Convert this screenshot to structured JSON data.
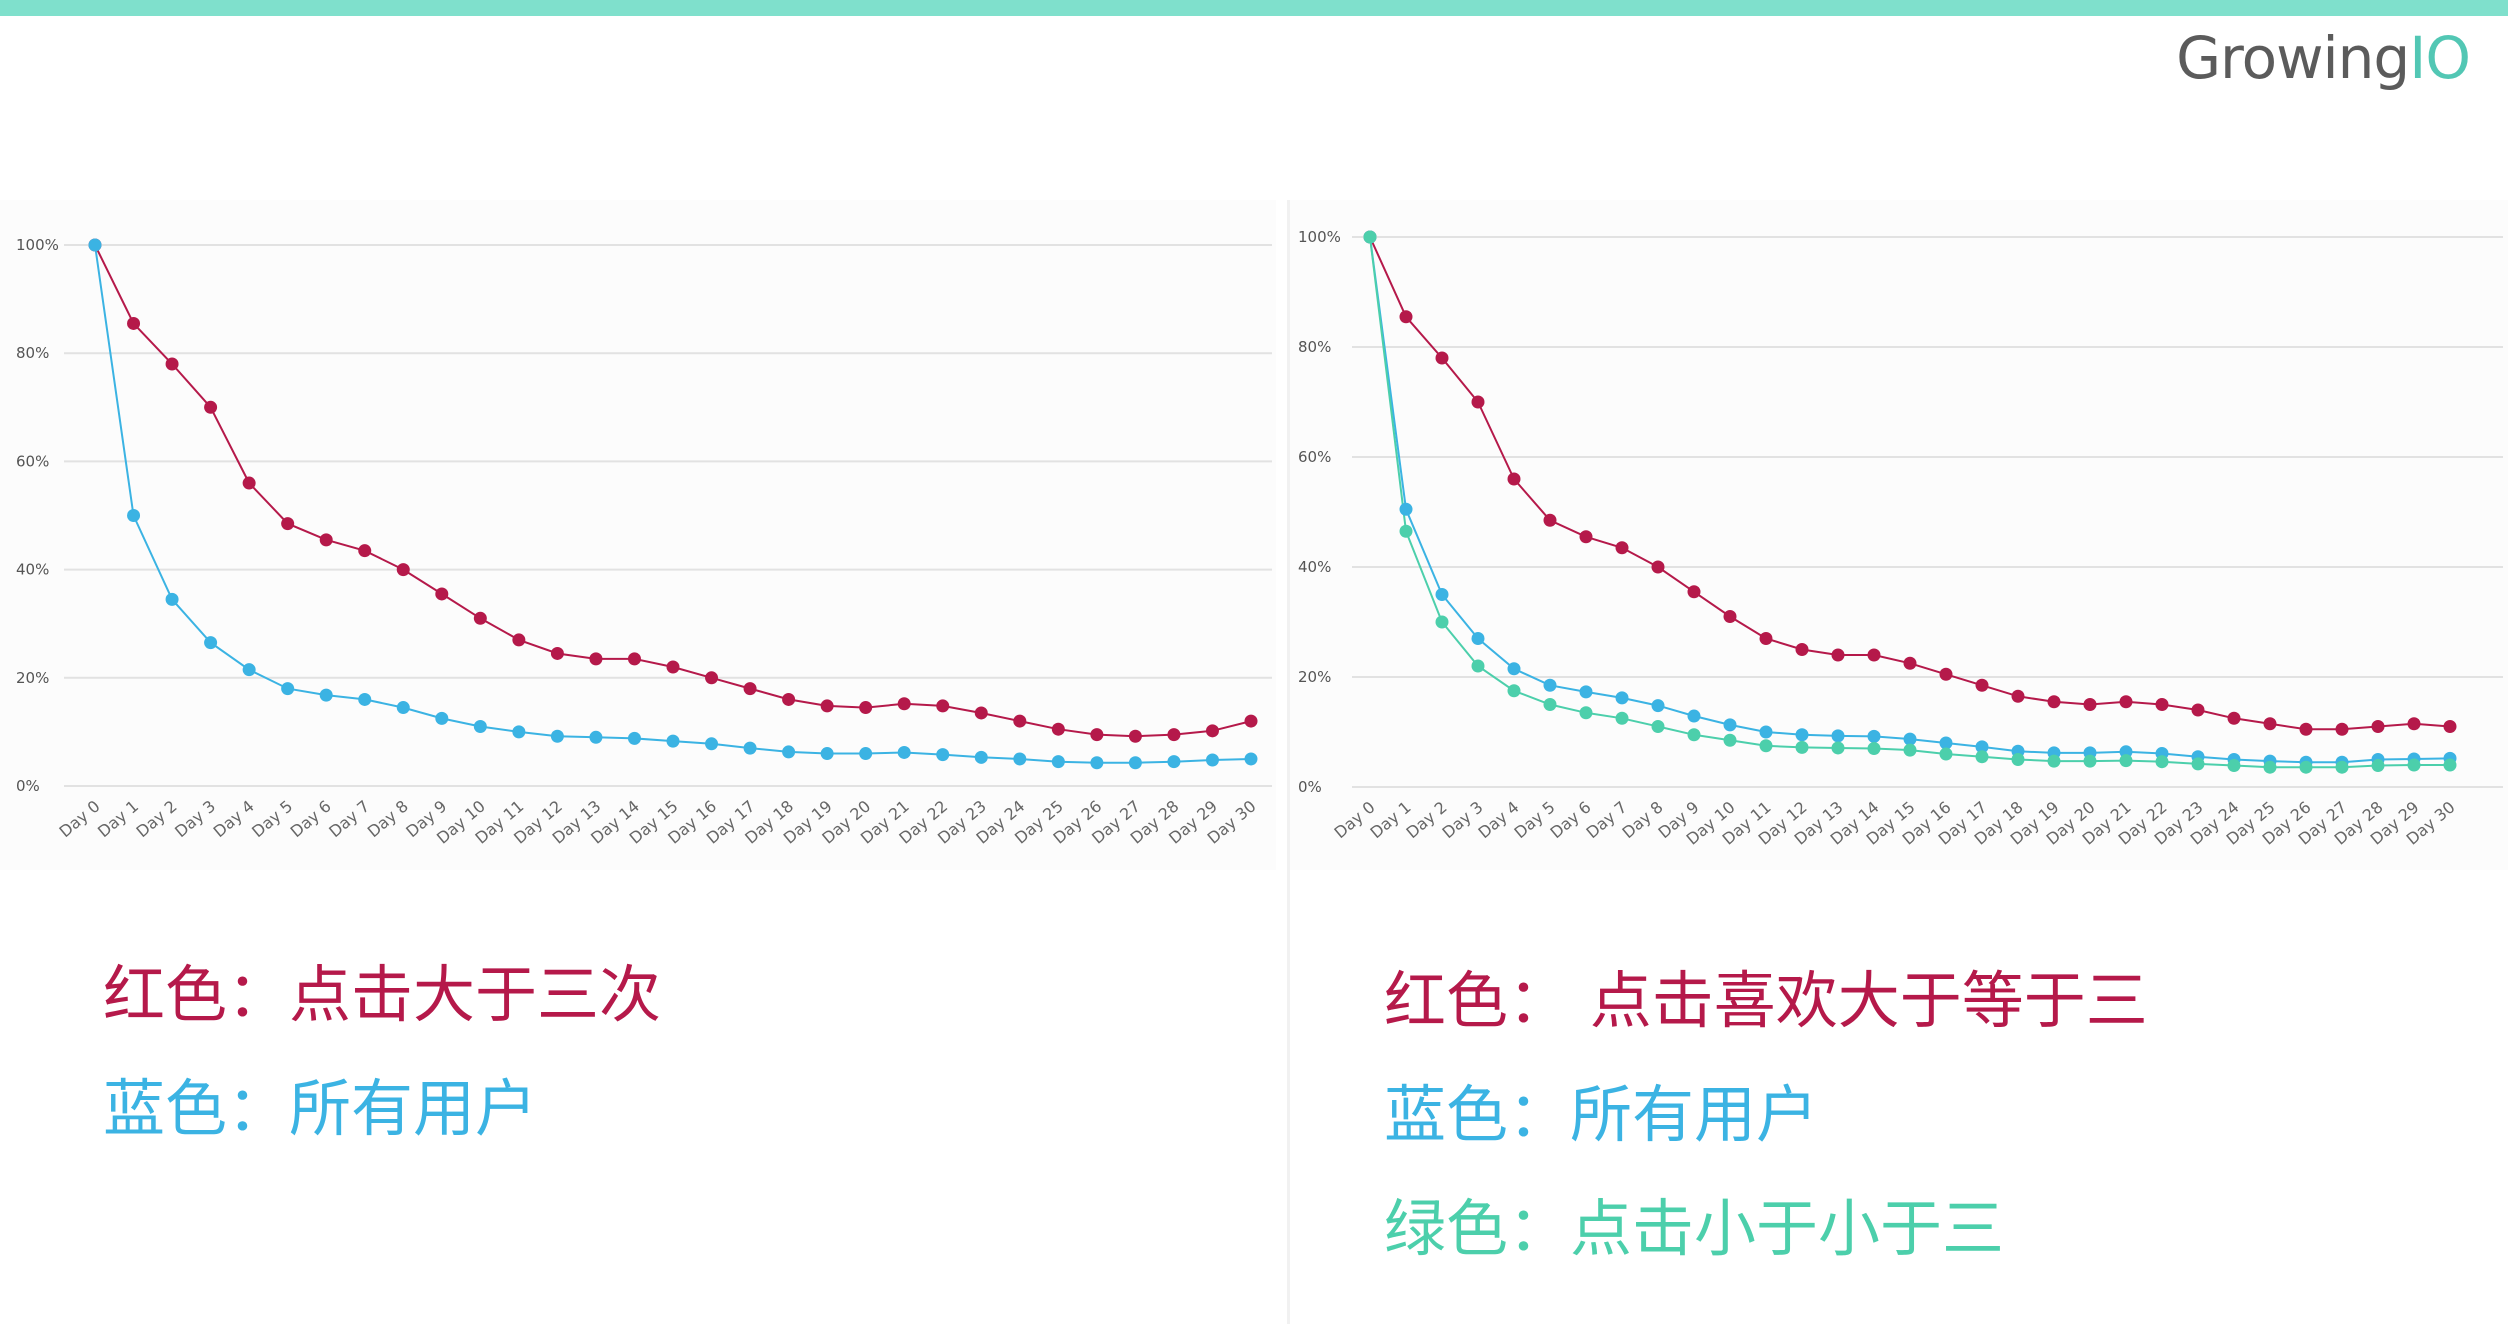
{
  "brand": {
    "name_main": "Growing",
    "name_io": "IO",
    "accent_color": "#7fe0cc"
  },
  "colors": {
    "red": "#b5194a",
    "blue": "#3bb3e3",
    "green": "#4ccfab"
  },
  "chart_data": [
    {
      "type": "line",
      "categories": [
        "Day 0",
        "Day 1",
        "Day 2",
        "Day 3",
        "Day 4",
        "Day 5",
        "Day 6",
        "Day 7",
        "Day 8",
        "Day 9",
        "Day 10",
        "Day 11",
        "Day 12",
        "Day 13",
        "Day 14",
        "Day 15",
        "Day 16",
        "Day 17",
        "Day 18",
        "Day 19",
        "Day 20",
        "Day 21",
        "Day 22",
        "Day 23",
        "Day 24",
        "Day 25",
        "Day 26",
        "Day 27",
        "Day 28",
        "Day 29",
        "Day 30"
      ],
      "yticks": [
        "0%",
        "20%",
        "40%",
        "60%",
        "80%",
        "100%"
      ],
      "ylim": [
        0,
        100
      ],
      "grid": true,
      "series": [
        {
          "color_key": "red",
          "values": [
            100,
            85.5,
            78,
            70,
            56,
            48.5,
            45.5,
            43.5,
            40,
            35.5,
            31,
            27,
            24.5,
            23.5,
            23.5,
            22,
            20,
            18,
            16,
            14.8,
            14.5,
            15.2,
            14.8,
            13.5,
            12,
            10.5,
            9.5,
            9.2,
            9.5,
            10.2,
            12
          ]
        },
        {
          "color_key": "blue",
          "values": [
            100,
            50,
            34.5,
            26.5,
            21.5,
            18,
            16.8,
            16,
            14.5,
            12.5,
            11,
            10,
            9.2,
            9,
            8.8,
            8.3,
            7.8,
            7,
            6.3,
            6,
            6,
            6.2,
            5.8,
            5.3,
            5,
            4.5,
            4.3,
            4.3,
            4.5,
            4.8,
            5
          ]
        }
      ]
    },
    {
      "type": "line",
      "categories": [
        "Day 0",
        "Day 1",
        "Day 2",
        "Day 3",
        "Day 4",
        "Day 5",
        "Day 6",
        "Day 7",
        "Day 8",
        "Day 9",
        "Day 10",
        "Day 11",
        "Day 12",
        "Day 13",
        "Day 14",
        "Day 15",
        "Day 16",
        "Day 17",
        "Day 18",
        "Day 19",
        "Day 20",
        "Day 21",
        "Day 22",
        "Day 23",
        "Day 24",
        "Day 25",
        "Day 26",
        "Day 27",
        "Day 28",
        "Day 29",
        "Day 30"
      ],
      "yticks": [
        "0%",
        "20%",
        "40%",
        "60%",
        "80%",
        "100%"
      ],
      "ylim": [
        0,
        100
      ],
      "grid": true,
      "series": [
        {
          "color_key": "red",
          "values": [
            100,
            85.5,
            78,
            70,
            56,
            48.5,
            45.5,
            43.5,
            40,
            35.5,
            31,
            27,
            25,
            24,
            24,
            22.5,
            20.5,
            18.5,
            16.5,
            15.5,
            15,
            15.5,
            15,
            14,
            12.5,
            11.5,
            10.5,
            10.5,
            11,
            11.5,
            11
          ]
        },
        {
          "color_key": "blue",
          "values": [
            100,
            50.5,
            35,
            27,
            21.5,
            18.5,
            17.3,
            16.2,
            14.8,
            12.9,
            11.3,
            10,
            9.5,
            9.3,
            9.2,
            8.7,
            8,
            7.3,
            6.5,
            6.2,
            6.2,
            6.4,
            6.1,
            5.5,
            5,
            4.7,
            4.5,
            4.5,
            5,
            5.1,
            5.2
          ]
        },
        {
          "color_key": "green",
          "values": [
            100,
            46.5,
            30,
            22,
            17.5,
            15,
            13.5,
            12.5,
            11,
            9.5,
            8.5,
            7.5,
            7.2,
            7.1,
            7,
            6.7,
            6,
            5.5,
            5,
            4.7,
            4.7,
            4.8,
            4.6,
            4.2,
            3.9,
            3.6,
            3.6,
            3.6,
            3.9,
            4,
            4
          ]
        }
      ]
    }
  ],
  "legend_left": [
    {
      "color_key": "red",
      "label": "红色",
      "sep": "：",
      "text": "点击大于三次"
    },
    {
      "color_key": "blue",
      "label": "蓝色",
      "sep": "：",
      "text": "所有用户"
    }
  ],
  "legend_right": [
    {
      "color_key": "red",
      "label": "红色",
      "sep": "： ",
      "text": "点击喜欢大于等于三"
    },
    {
      "color_key": "blue",
      "label": "蓝色",
      "sep": "：",
      "text": "所有用户"
    },
    {
      "color_key": "green",
      "label": "绿色",
      "sep": "：",
      "text": "点击小于小于三"
    }
  ]
}
